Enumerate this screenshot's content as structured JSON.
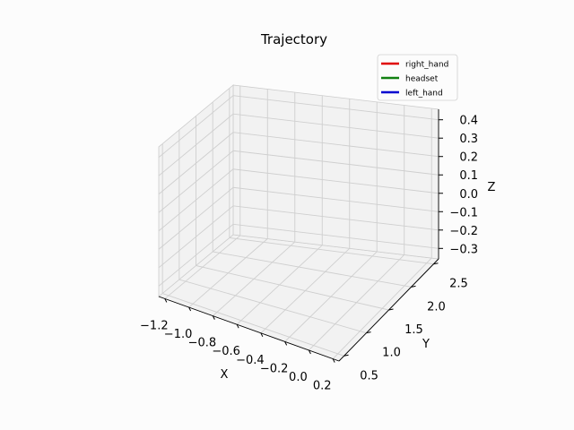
{
  "chart_data": {
    "type": "line",
    "projection": "3d",
    "title": "Trajectory",
    "xlabel": "X",
    "ylabel": "Y",
    "zlabel": "Z",
    "xlim": [
      -1.2,
      0.2
    ],
    "ylim": [
      0.5,
      2.5
    ],
    "zlim": [
      -0.3,
      0.4
    ],
    "x_ticks": [
      "−1.2",
      "−1.0",
      "−0.8",
      "−0.6",
      "−0.4",
      "−0.2",
      "0.0",
      "0.2"
    ],
    "y_ticks": [
      "0.5",
      "1.0",
      "1.5",
      "2.0",
      "2.5"
    ],
    "z_ticks": [
      "−0.3",
      "−0.2",
      "−0.1",
      "0.0",
      "0.1",
      "0.2",
      "0.3",
      "0.4"
    ],
    "grid": true,
    "legend_position": "top-right",
    "series": [
      {
        "name": "right_hand",
        "color": "#e00000",
        "points": []
      },
      {
        "name": "headset",
        "color": "#118011",
        "points": []
      },
      {
        "name": "left_hand",
        "color": "#0000d0",
        "points": []
      }
    ]
  }
}
